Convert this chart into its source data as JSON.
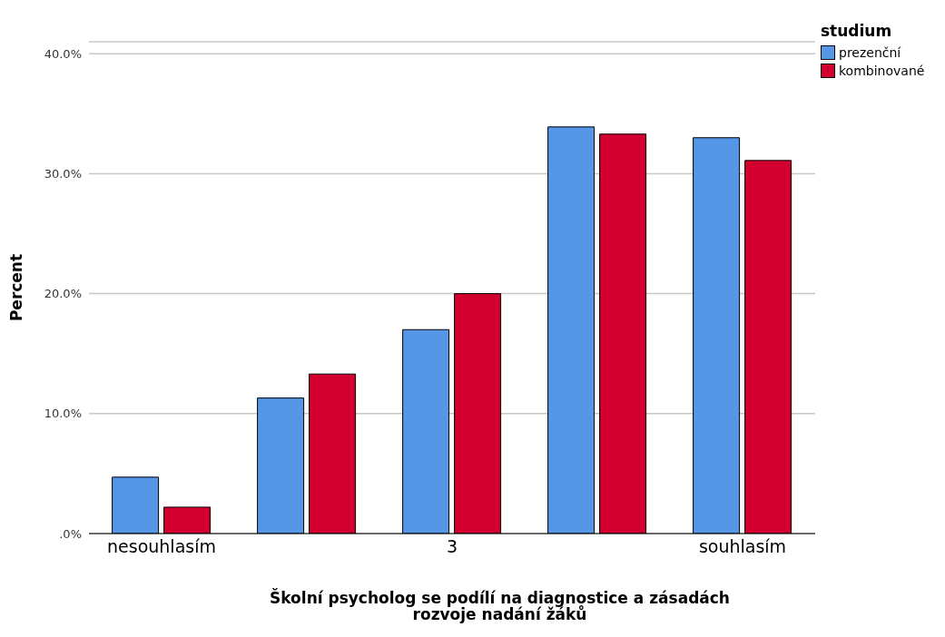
{
  "chart_data": {
    "type": "bar",
    "xlabel": "Školní psycholog se podílí na diagnostice a zásadách rozvoje nadání žáků",
    "ylabel": "Percent",
    "legend_title": "studium",
    "legend": "top right",
    "grid": "y",
    "categories": [
      "nesouhlasím",
      null,
      "3",
      null,
      "souhlasím"
    ],
    "series": [
      {
        "name": "prezenční",
        "color": "#5596e6",
        "values": [
          4.7,
          11.3,
          17.0,
          33.9,
          33.0
        ]
      },
      {
        "name": "kombinované",
        "color": "#d2002e",
        "values": [
          2.2,
          13.3,
          20.0,
          33.3,
          31.1
        ]
      }
    ],
    "ylim": [
      0,
      41
    ],
    "yticks": [
      {
        "value": 0,
        "label": ".0%"
      },
      {
        "value": 10,
        "label": "10.0%"
      },
      {
        "value": 20,
        "label": "20.0%"
      },
      {
        "value": 30,
        "label": "30.0%"
      },
      {
        "value": 40,
        "label": "40.0%"
      }
    ]
  }
}
